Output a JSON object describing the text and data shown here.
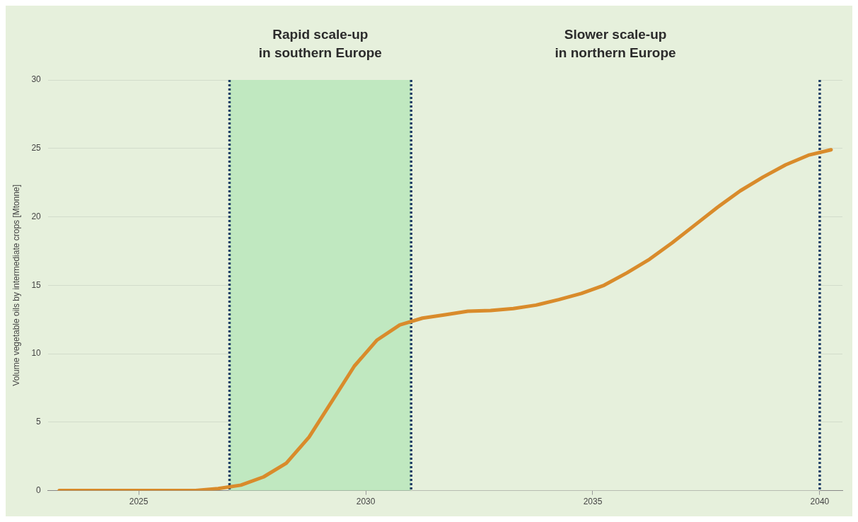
{
  "chart_data": {
    "type": "line",
    "ylabel": "Volume vegetable oils by intermediate crops [Mtonne]",
    "x": [
      2023.25,
      2023.75,
      2024.25,
      2024.75,
      2025.25,
      2025.75,
      2026.25,
      2026.75,
      2027.25,
      2027.75,
      2028.25,
      2028.75,
      2029.25,
      2029.75,
      2030.25,
      2030.75,
      2031.25,
      2031.75,
      2032.25,
      2032.75,
      2033.25,
      2033.75,
      2034.25,
      2034.75,
      2035.25,
      2035.75,
      2036.25,
      2036.75,
      2037.25,
      2037.75,
      2038.25,
      2038.75,
      2039.25,
      2039.75,
      2040.25
    ],
    "series": [
      {
        "color": "#d98b2b",
        "values": [
          0,
          0,
          0,
          0,
          0,
          0,
          0,
          0.15,
          0.4,
          1.0,
          2.0,
          3.9,
          6.5,
          9.1,
          11.0,
          12.1,
          12.6,
          12.85,
          13.1,
          13.15,
          13.3,
          13.55,
          13.95,
          14.4,
          15.0,
          15.9,
          16.9,
          18.1,
          19.4,
          20.7,
          21.9,
          22.9,
          23.8,
          24.5,
          24.9
        ]
      }
    ],
    "xlim": [
      2023,
      2040.5
    ],
    "xticks": [
      2025,
      2030,
      2035,
      2040
    ],
    "ylim": [
      0,
      30
    ],
    "yticks": [
      0,
      5,
      10,
      15,
      20,
      25,
      30
    ],
    "grid": "y",
    "legend": false,
    "marker": "none",
    "line_style": "solid",
    "bands": [
      {
        "axis": "x",
        "from": 2027,
        "to": 2031,
        "label": "Rapid scale-up\nin southern Europe",
        "color": "#c0e8c0"
      },
      {
        "axis": "x",
        "from": 2031,
        "to": 2040,
        "label": "Slower scale-up\nin northern Europe",
        "color": "#e6f0dc"
      }
    ],
    "ref_lines": [
      {
        "axis": "x",
        "value": 2027,
        "color": "#1f3f66",
        "line_style": "dotted"
      },
      {
        "axis": "x",
        "value": 2031,
        "color": "#1f3f66",
        "line_style": "dotted"
      },
      {
        "axis": "x",
        "value": 2040,
        "color": "#1f3f66",
        "line_style": "dotted"
      }
    ]
  }
}
